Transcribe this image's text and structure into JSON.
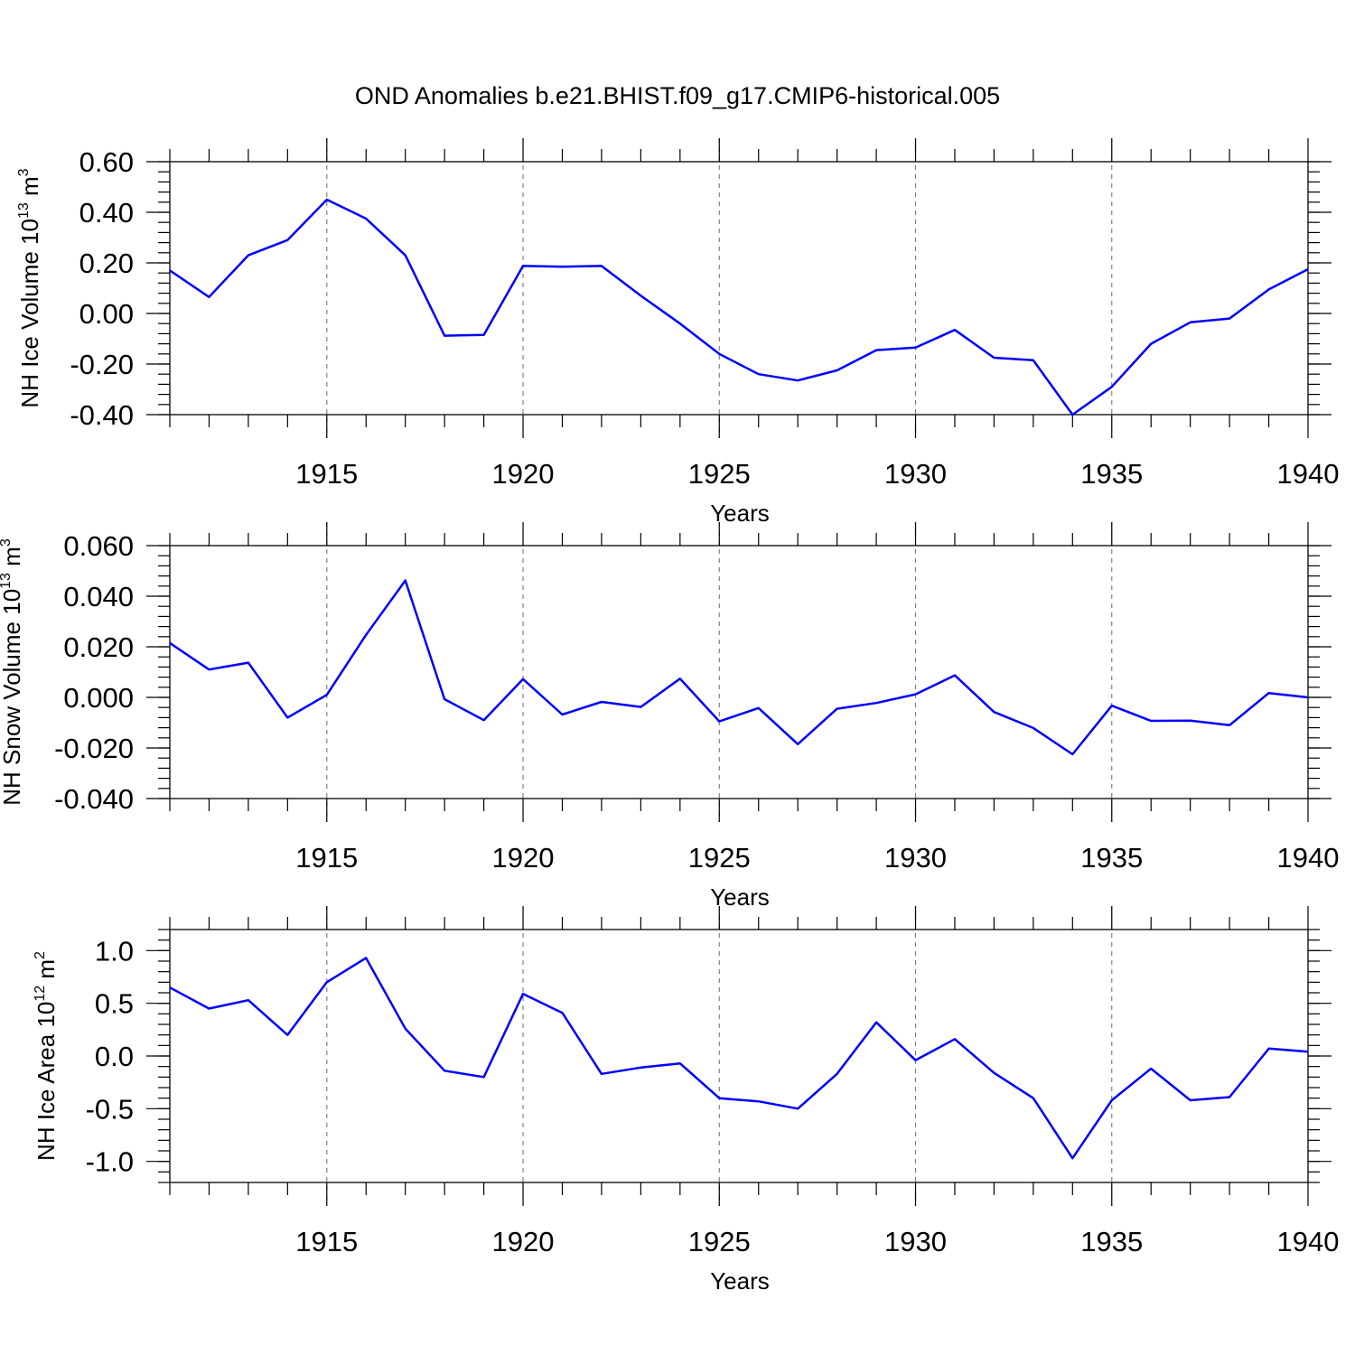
{
  "figure": {
    "title": "OND Anomalies b.e21.BHIST.f09_g17.CMIP6-historical.005"
  },
  "colors": {
    "series": "#0000ff",
    "grid": "#777777",
    "axes": "#000000"
  },
  "chart_data": [
    {
      "type": "line",
      "xlabel": "Years",
      "ylabel": {
        "main": "NH Ice Volume 10",
        "exp": "13",
        "unit": " m",
        "unit_exp": "3"
      },
      "xlim": [
        1911,
        1940
      ],
      "ylim": [
        -0.4,
        0.6
      ],
      "x_ticks": [
        "1915",
        "1920",
        "1925",
        "1930",
        "1935",
        "1940"
      ],
      "y_ticks": [
        "0.60",
        "0.40",
        "0.20",
        "0.00",
        "-0.20",
        "-0.40"
      ],
      "y_tick_values": [
        0.6,
        0.4,
        0.2,
        0.0,
        -0.2,
        -0.4
      ],
      "y_minor_step": 0.04,
      "grid": "vertical dashed at labeled years",
      "x": [
        1911,
        1912,
        1913,
        1914,
        1915,
        1916,
        1917,
        1918,
        1919,
        1920,
        1921,
        1922,
        1923,
        1924,
        1925,
        1926,
        1927,
        1928,
        1929,
        1930,
        1931,
        1932,
        1933,
        1934,
        1935,
        1936,
        1937,
        1938,
        1939,
        1940
      ],
      "values": [
        0.17,
        0.065,
        0.23,
        0.29,
        0.45,
        0.375,
        0.23,
        -0.088,
        -0.085,
        0.188,
        0.185,
        0.188,
        0.07,
        -0.04,
        -0.16,
        -0.24,
        -0.265,
        -0.225,
        -0.145,
        -0.135,
        -0.065,
        -0.175,
        -0.185,
        -0.4,
        -0.29,
        -0.12,
        -0.035,
        -0.02,
        0.095,
        0.175
      ]
    },
    {
      "type": "line",
      "xlabel": "Years",
      "ylabel": {
        "main": "NH Snow Volume 10",
        "exp": "13",
        "unit": " m",
        "unit_exp": "3"
      },
      "xlim": [
        1911,
        1940
      ],
      "ylim": [
        -0.04,
        0.06
      ],
      "x_ticks": [
        "1915",
        "1920",
        "1925",
        "1930",
        "1935",
        "1940"
      ],
      "y_ticks": [
        "0.060",
        "0.040",
        "0.020",
        "0.000",
        "-0.020",
        "-0.040"
      ],
      "y_tick_values": [
        0.06,
        0.04,
        0.02,
        0.0,
        -0.02,
        -0.04
      ],
      "y_minor_step": 0.004,
      "grid": "vertical dashed at labeled years",
      "x": [
        1911,
        1912,
        1913,
        1914,
        1915,
        1916,
        1917,
        1918,
        1919,
        1920,
        1921,
        1922,
        1923,
        1924,
        1925,
        1926,
        1927,
        1928,
        1929,
        1930,
        1931,
        1932,
        1933,
        1934,
        1935,
        1936,
        1937,
        1938,
        1939,
        1940
      ],
      "values": [
        0.0215,
        0.011,
        0.0137,
        -0.008,
        0.001,
        0.0247,
        0.0462,
        -0.0007,
        -0.009,
        0.0072,
        -0.0068,
        -0.0018,
        -0.0038,
        0.0074,
        -0.0095,
        -0.0042,
        -0.0185,
        -0.0045,
        -0.0022,
        0.0012,
        0.0087,
        -0.0058,
        -0.0121,
        -0.0225,
        -0.0033,
        -0.0093,
        -0.0092,
        -0.011,
        0.0017,
        0.0
      ]
    },
    {
      "type": "line",
      "xlabel": "Years",
      "ylabel": {
        "main": "NH Ice Area 10",
        "exp": "12",
        "unit": " m",
        "unit_exp": "2"
      },
      "xlim": [
        1911,
        1940
      ],
      "ylim": [
        -1.2,
        1.2
      ],
      "x_ticks": [
        "1915",
        "1920",
        "1925",
        "1930",
        "1935",
        "1940"
      ],
      "y_ticks": [
        "1.0",
        "0.5",
        "0.0",
        "-0.5",
        "-1.0"
      ],
      "y_tick_values": [
        1.0,
        0.5,
        0.0,
        -0.5,
        -1.0
      ],
      "y_minor_step": 0.1,
      "grid": "vertical dashed at labeled years",
      "x": [
        1911,
        1912,
        1913,
        1914,
        1915,
        1916,
        1917,
        1918,
        1919,
        1920,
        1921,
        1922,
        1923,
        1924,
        1925,
        1926,
        1927,
        1928,
        1929,
        1930,
        1931,
        1932,
        1933,
        1934,
        1935,
        1936,
        1937,
        1938,
        1939,
        1940
      ],
      "values": [
        0.65,
        0.45,
        0.53,
        0.2,
        0.7,
        0.93,
        0.26,
        -0.14,
        -0.2,
        0.59,
        0.41,
        -0.17,
        -0.11,
        -0.07,
        -0.4,
        -0.43,
        -0.5,
        -0.17,
        0.32,
        -0.04,
        0.16,
        -0.16,
        -0.4,
        -0.97,
        -0.42,
        -0.12,
        -0.42,
        -0.39,
        0.07,
        0.04
      ]
    }
  ]
}
